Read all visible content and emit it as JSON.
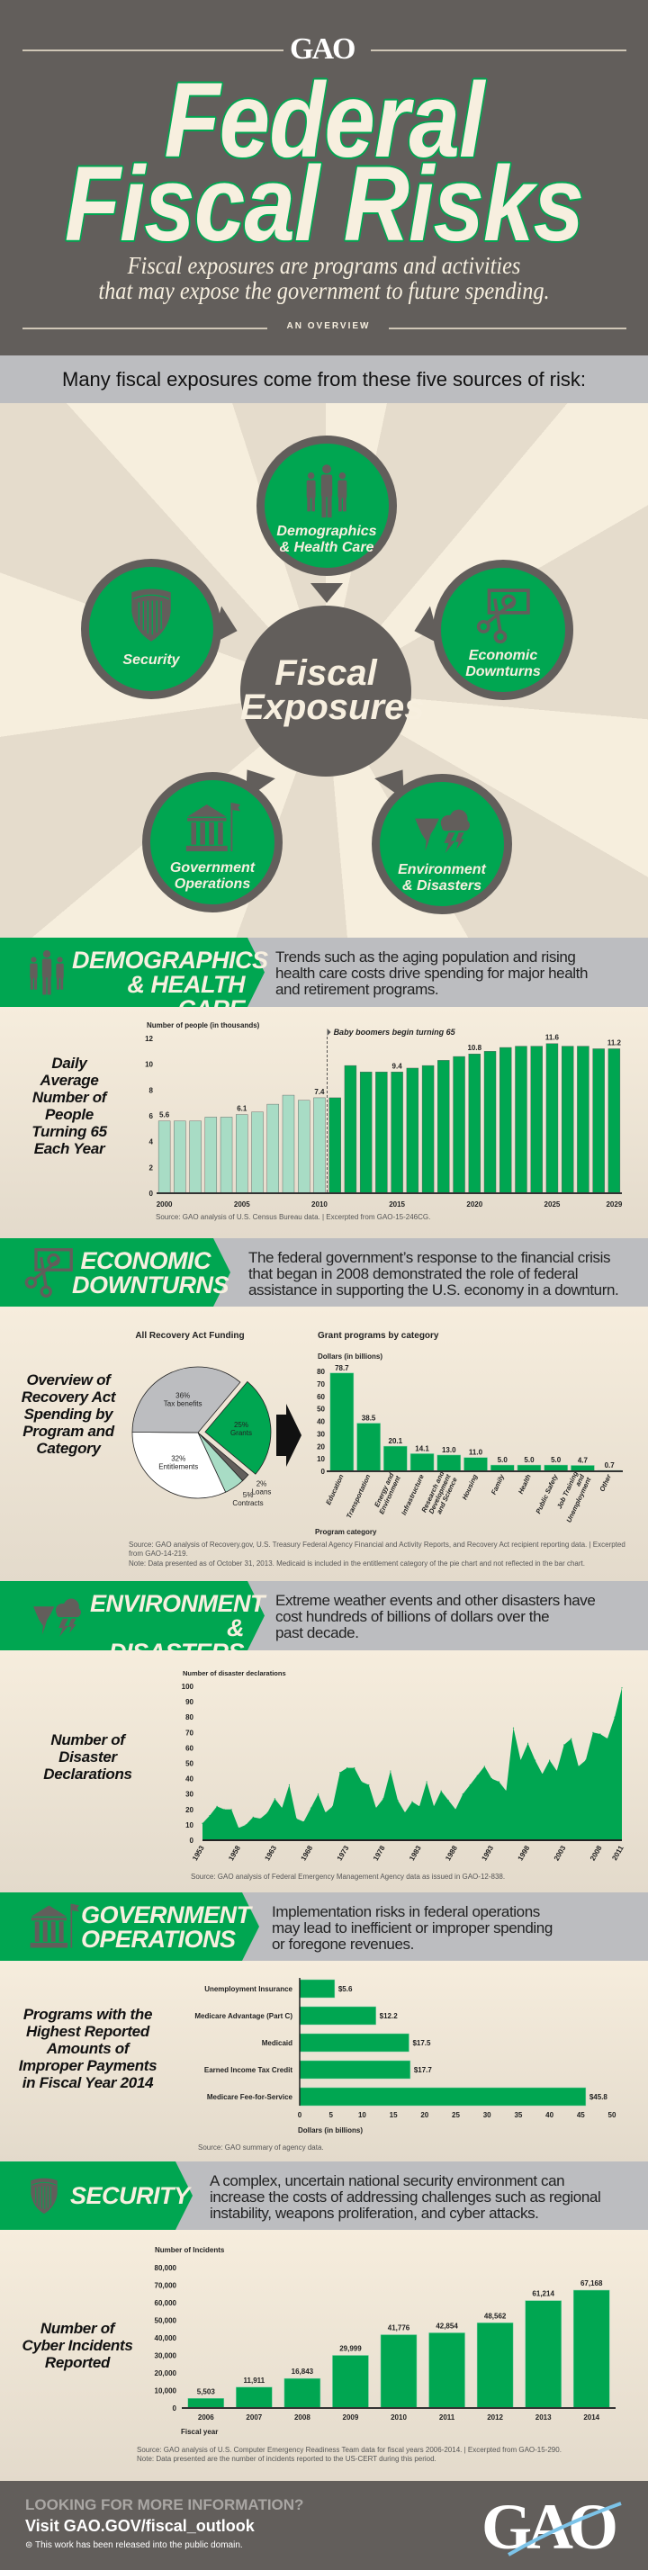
{
  "colors": {
    "green": "#00a651",
    "light_green": "#a8dcc5",
    "dark_gray": "#625e5b",
    "light_gray": "#bcbdc0",
    "cream": "#f7efdf"
  },
  "header": {
    "logo": "GAO",
    "title_line1": "Federal",
    "title_line2": "Fiscal Risks",
    "subtitle_line1": "Fiscal exposures are programs and activities",
    "subtitle_line2": "that may expose the government to future spending.",
    "overview": "AN OVERVIEW"
  },
  "intro": "Many fiscal exposures come from these five sources of risk:",
  "diagram": {
    "center_line1": "Fiscal",
    "center_line2": "Exposures",
    "sources": [
      {
        "line1": "Demographics",
        "line2": "& Health Care",
        "icon": "people-icon"
      },
      {
        "line1": "Security",
        "line2": "",
        "icon": "shield-icon"
      },
      {
        "line1": "Economic",
        "line2": "Downturns",
        "icon": "money-scissors-icon"
      },
      {
        "line1": "Government",
        "line2": "Operations",
        "icon": "government-building-icon"
      },
      {
        "line1": "Environment",
        "line2": "& Disasters",
        "icon": "tornado-storm-icon"
      }
    ]
  },
  "sections": {
    "demographics": {
      "title1": "DEMOGRAPHICS",
      "title2": "& HEALTH CARE",
      "desc": [
        "Trends such as the aging population and rising",
        "health care costs drive spending for major health",
        "and retirement programs."
      ],
      "chart_title": [
        "Daily",
        "Average",
        "Number of",
        "People",
        "Turning 65",
        "Each Year"
      ],
      "source": "Source: GAO analysis of U.S. Census Bureau data.  |  Excerpted from GAO-15-246CG."
    },
    "economic": {
      "title1": "ECONOMIC",
      "title2": "DOWNTURNS",
      "desc": [
        "The federal government’s response to the financial crisis",
        "that began in 2008 demonstrated the role of federal",
        "assistance in supporting the U.S. economy in a downturn."
      ],
      "chart_title": [
        "Overview of",
        "Recovery Act",
        "Spending by",
        "Program and",
        "Category"
      ],
      "source": "Source: GAO analysis of Recovery.gov, U.S. Treasury Federal Agency Financial and Activity Reports, and Recovery Act recipient reporting data.  |  Excerpted from GAO-14-219.",
      "note": "Note: Data presented as of October 31, 2013. Medicaid is included in the entitlement category of the pie chart and not reflected in the bar chart."
    },
    "environment": {
      "title1": "ENVIRONMENT",
      "title2": "& DISASTERS",
      "desc": [
        "Extreme weather events and other disasters have",
        "cost hundreds of billions of dollars over the",
        "past decade."
      ],
      "chart_title": [
        "Number of",
        "Disaster",
        "Declarations"
      ],
      "source": "Source: GAO analysis of Federal Emergency Management Agency data as issued in GAO-12-838."
    },
    "government": {
      "title1": "GOVERNMENT",
      "title2": "OPERATIONS",
      "desc": [
        "Implementation risks in federal operations",
        "may lead to inefficient or improper spending",
        "or foregone revenues."
      ],
      "chart_title": [
        "Programs with the",
        "Highest Reported",
        "Amounts of",
        "Improper Payments",
        "in Fiscal Year 2014"
      ],
      "source": "Source: GAO summary of agency data."
    },
    "security": {
      "title1": "SECURITY",
      "desc": [
        "A complex, uncertain national security environment can",
        "increase the costs of addressing challenges such as regional",
        "instability, weapons proliferation, and cyber attacks."
      ],
      "chart_title": [
        "Number of",
        "Cyber Incidents",
        "Reported"
      ],
      "source": "Source: GAO analysis of U.S. Computer Emergency Readiness Team data for fiscal years 2006-2014.  |  Excerpted from GAO-15-290.",
      "note": "Note: Data presented are the number of incidents reported to the US-CERT during this period."
    }
  },
  "chart_data": [
    {
      "type": "bar",
      "ylabel": "Number of people (in thousands)",
      "ylim": [
        0,
        12
      ],
      "yticks": [
        0,
        2,
        4,
        6,
        8,
        10,
        12
      ],
      "x": [
        2000,
        2001,
        2002,
        2003,
        2004,
        2005,
        2006,
        2007,
        2008,
        2009,
        2010,
        2011,
        2012,
        2013,
        2014,
        2015,
        2016,
        2017,
        2018,
        2019,
        2020,
        2021,
        2022,
        2023,
        2024,
        2025,
        2026,
        2027,
        2028,
        2029
      ],
      "values": [
        5.6,
        5.6,
        5.6,
        5.9,
        5.9,
        6.1,
        6.3,
        6.9,
        7.6,
        7.2,
        7.4,
        7.4,
        9.9,
        9.4,
        9.4,
        9.4,
        9.7,
        9.9,
        10.3,
        10.6,
        10.8,
        11.0,
        11.3,
        11.4,
        11.4,
        11.6,
        11.4,
        11.4,
        11.2,
        11.2
      ],
      "xtick_labels": [
        2000,
        2005,
        2010,
        2015,
        2020,
        2025,
        2029
      ],
      "data_labels": {
        "2000": "5.6",
        "2005": "6.1",
        "2010": "7.4",
        "2015": "9.4",
        "2020": "10.8",
        "2025": "11.6",
        "2029": "11.2"
      },
      "annotation": "Baby boomers begin turning 65",
      "annotation_after_year": 2010
    },
    {
      "type": "pie",
      "title": "All Recovery Act Funding",
      "slices": [
        {
          "label": "Grants",
          "value": 25,
          "color": "#00a651"
        },
        {
          "label": "Loans",
          "value": 2,
          "color": "#625e5b"
        },
        {
          "label": "Contracts",
          "value": 5,
          "color": "#a8dcc5"
        },
        {
          "label": "Entitlements",
          "value": 32,
          "color": "#ffffff"
        },
        {
          "label": "Tax benefits",
          "value": 36,
          "color": "#bcbdc0"
        }
      ]
    },
    {
      "type": "bar",
      "title": "Grant programs by category",
      "ylabel": "Dollars (in billions)",
      "xlabel": "Program category",
      "ylim": [
        0,
        80
      ],
      "yticks": [
        0,
        10,
        20,
        30,
        40,
        50,
        60,
        70,
        80
      ],
      "categories": [
        "Education",
        "Transportation",
        "Energy and Environment",
        "Infrastructure",
        "Research and Development and Science",
        "Housing",
        "Family",
        "Health",
        "Public Safety",
        "Job Training and Unemployment",
        "Other"
      ],
      "values": [
        78.7,
        38.5,
        20.1,
        14.1,
        13.0,
        11.0,
        5.0,
        5.0,
        5.0,
        4.7,
        0.7
      ]
    },
    {
      "type": "area",
      "ylabel": "Number of disaster declarations",
      "ylim": [
        0,
        100
      ],
      "yticks": [
        0,
        10,
        20,
        30,
        40,
        50,
        60,
        70,
        80,
        90,
        100
      ],
      "x_start": 1953,
      "xtick_labels": [
        1953,
        1958,
        1963,
        1968,
        1973,
        1978,
        1983,
        1988,
        1993,
        1998,
        2003,
        2008,
        2011
      ],
      "values": [
        11,
        16,
        22,
        20,
        20,
        8,
        10,
        15,
        14,
        18,
        27,
        21,
        36,
        14,
        12,
        21,
        30,
        18,
        22,
        44,
        47,
        47,
        38,
        36,
        21,
        27,
        45,
        26,
        18,
        25,
        22,
        38,
        22,
        32,
        26,
        20,
        30,
        36,
        42,
        48,
        40,
        38,
        32,
        73,
        52,
        63,
        52,
        43,
        52,
        45,
        62,
        66,
        48,
        52,
        70,
        69,
        66,
        80,
        99
      ]
    },
    {
      "type": "bar",
      "orientation": "horizontal",
      "xlabel": "Dollars (in billions)",
      "xlim": [
        0,
        50
      ],
      "xticks": [
        0,
        5,
        10,
        15,
        20,
        25,
        30,
        35,
        40,
        45,
        50
      ],
      "categories": [
        "Unemployment Insurance",
        "Medicare Advantage (Part C)",
        "Medicaid",
        "Earned Income Tax Credit",
        "Medicare Fee-for-Service"
      ],
      "values": [
        5.6,
        12.2,
        17.5,
        17.7,
        45.8
      ],
      "data_labels": [
        "$5.6",
        "$12.2",
        "$17.5",
        "$17.7",
        "$45.8"
      ]
    },
    {
      "type": "bar",
      "ylabel": "Number of incidents",
      "xlabel": "Fiscal year",
      "ylim": [
        0,
        80000
      ],
      "yticks": [
        "0",
        "10,000",
        "20,000",
        "30,000",
        "40,000",
        "50,000",
        "60,000",
        "70,000",
        "80,000"
      ],
      "categories": [
        "2006",
        "2007",
        "2008",
        "2009",
        "2010",
        "2011",
        "2012",
        "2013",
        "2014"
      ],
      "values": [
        5503,
        11911,
        16843,
        29999,
        41776,
        42854,
        48562,
        61214,
        67168
      ],
      "data_labels": [
        "5,503",
        "11,911",
        "16,843",
        "29,999",
        "41,776",
        "42,854",
        "48,562",
        "61,214",
        "67,168"
      ]
    }
  ],
  "footer": {
    "question": "LOOKING FOR MORE INFORMATION?",
    "visit": "Visit GAO.GOV/fiscal_outlook",
    "public_domain": "This work has been released into the public domain.",
    "logo": "GAO"
  }
}
